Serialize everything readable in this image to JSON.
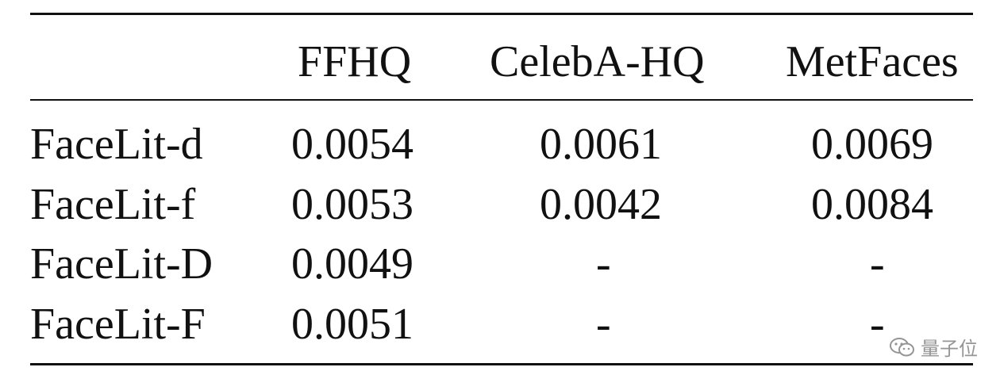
{
  "table": {
    "headers": [
      "",
      "FFHQ",
      "CelebA-HQ",
      "MetFaces"
    ],
    "rows": [
      {
        "label": "FaceLit-d",
        "values": [
          "0.0054",
          "0.0061",
          "0.0069"
        ]
      },
      {
        "label": "FaceLit-f",
        "values": [
          "0.0053",
          "0.0042",
          "0.0084"
        ]
      },
      {
        "label": "FaceLit-D",
        "values": [
          "0.0049",
          "-",
          "-"
        ]
      },
      {
        "label": "FaceLit-F",
        "values": [
          "0.0051",
          "-",
          "-"
        ]
      }
    ]
  },
  "watermark": {
    "icon": "wechat-icon",
    "text": "量子位"
  }
}
